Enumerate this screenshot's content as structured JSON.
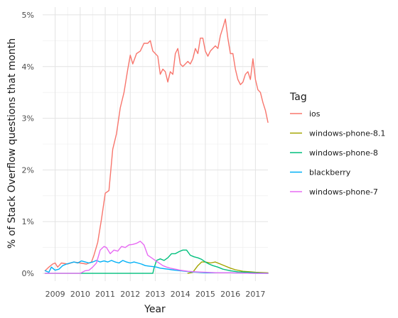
{
  "chart_data": {
    "type": "line",
    "xlabel": "Year",
    "ylabel": "% of Stack Overflow questions that month",
    "xlim": [
      2008.5,
      2017.5
    ],
    "ylim": [
      -0.15,
      5.15
    ],
    "x_ticks": [
      2009,
      2010,
      2011,
      2012,
      2013,
      2014,
      2015,
      2016,
      2017
    ],
    "x_tick_labels": [
      "2009",
      "2010",
      "2011",
      "2012",
      "2013",
      "2014",
      "2015",
      "2016",
      "2017"
    ],
    "y_ticks": [
      0,
      1,
      2,
      3,
      4,
      5
    ],
    "y_tick_labels": [
      "0%",
      "1%",
      "2%",
      "3%",
      "4%",
      "5%"
    ],
    "grid": true,
    "legend": {
      "title": "Tag",
      "position": "right",
      "entries": [
        {
          "label": "ios",
          "color": "#F8766D"
        },
        {
          "label": "windows-phone-8.1",
          "color": "#A3A500"
        },
        {
          "label": "windows-phone-8",
          "color": "#00BF7D"
        },
        {
          "label": "blackberry",
          "color": "#00B0F6"
        },
        {
          "label": "windows-phone-7",
          "color": "#E76BF3"
        }
      ]
    },
    "series": [
      {
        "name": "ios",
        "color": "#F8766D",
        "points": [
          [
            2008.6,
            0.05
          ],
          [
            2008.75,
            0.12
          ],
          [
            2008.9,
            0.18
          ],
          [
            2009.0,
            0.2
          ],
          [
            2009.1,
            0.12
          ],
          [
            2009.25,
            0.2
          ],
          [
            2009.5,
            0.18
          ],
          [
            2009.75,
            0.22
          ],
          [
            2010.0,
            0.2
          ],
          [
            2010.25,
            0.18
          ],
          [
            2010.45,
            0.22
          ],
          [
            2010.55,
            0.35
          ],
          [
            2010.7,
            0.6
          ],
          [
            2010.85,
            1.05
          ],
          [
            2011.0,
            1.55
          ],
          [
            2011.15,
            1.6
          ],
          [
            2011.3,
            2.4
          ],
          [
            2011.45,
            2.7
          ],
          [
            2011.6,
            3.2
          ],
          [
            2011.75,
            3.5
          ],
          [
            2011.9,
            3.95
          ],
          [
            2012.0,
            4.22
          ],
          [
            2012.1,
            4.05
          ],
          [
            2012.25,
            4.25
          ],
          [
            2012.4,
            4.3
          ],
          [
            2012.55,
            4.45
          ],
          [
            2012.7,
            4.45
          ],
          [
            2012.8,
            4.5
          ],
          [
            2012.9,
            4.3
          ],
          [
            2013.0,
            4.25
          ],
          [
            2013.1,
            4.2
          ],
          [
            2013.2,
            3.85
          ],
          [
            2013.3,
            3.95
          ],
          [
            2013.4,
            3.9
          ],
          [
            2013.5,
            3.7
          ],
          [
            2013.6,
            3.9
          ],
          [
            2013.7,
            3.85
          ],
          [
            2013.8,
            4.25
          ],
          [
            2013.9,
            4.35
          ],
          [
            2014.0,
            4.05
          ],
          [
            2014.1,
            4.0
          ],
          [
            2014.2,
            4.05
          ],
          [
            2014.3,
            4.1
          ],
          [
            2014.4,
            4.05
          ],
          [
            2014.5,
            4.15
          ],
          [
            2014.6,
            4.35
          ],
          [
            2014.7,
            4.25
          ],
          [
            2014.8,
            4.55
          ],
          [
            2014.9,
            4.55
          ],
          [
            2015.0,
            4.3
          ],
          [
            2015.1,
            4.2
          ],
          [
            2015.2,
            4.3
          ],
          [
            2015.3,
            4.35
          ],
          [
            2015.4,
            4.4
          ],
          [
            2015.5,
            4.35
          ],
          [
            2015.6,
            4.6
          ],
          [
            2015.7,
            4.75
          ],
          [
            2015.8,
            4.92
          ],
          [
            2015.9,
            4.55
          ],
          [
            2016.0,
            4.25
          ],
          [
            2016.1,
            4.25
          ],
          [
            2016.2,
            3.95
          ],
          [
            2016.3,
            3.75
          ],
          [
            2016.4,
            3.65
          ],
          [
            2016.5,
            3.7
          ],
          [
            2016.6,
            3.85
          ],
          [
            2016.7,
            3.9
          ],
          [
            2016.8,
            3.75
          ],
          [
            2016.9,
            4.15
          ],
          [
            2017.0,
            3.75
          ],
          [
            2017.1,
            3.55
          ],
          [
            2017.2,
            3.5
          ],
          [
            2017.3,
            3.3
          ],
          [
            2017.4,
            3.15
          ],
          [
            2017.5,
            2.92
          ]
        ]
      },
      {
        "name": "windows-phone-8.1",
        "color": "#A3A500",
        "points": [
          [
            2014.3,
            0.0
          ],
          [
            2014.5,
            0.02
          ],
          [
            2014.7,
            0.15
          ],
          [
            2014.85,
            0.22
          ],
          [
            2015.0,
            0.22
          ],
          [
            2015.2,
            0.2
          ],
          [
            2015.4,
            0.22
          ],
          [
            2015.6,
            0.18
          ],
          [
            2015.8,
            0.14
          ],
          [
            2016.0,
            0.1
          ],
          [
            2016.2,
            0.07
          ],
          [
            2016.5,
            0.04
          ],
          [
            2016.8,
            0.03
          ],
          [
            2017.0,
            0.02
          ],
          [
            2017.5,
            0.01
          ]
        ]
      },
      {
        "name": "windows-phone-8",
        "color": "#00BF7D",
        "points": [
          [
            2008.6,
            0.0
          ],
          [
            2010.0,
            0.0
          ],
          [
            2011.0,
            0.0
          ],
          [
            2012.0,
            0.0
          ],
          [
            2012.9,
            0.0
          ],
          [
            2012.95,
            0.1
          ],
          [
            2013.05,
            0.25
          ],
          [
            2013.2,
            0.28
          ],
          [
            2013.35,
            0.25
          ],
          [
            2013.5,
            0.3
          ],
          [
            2013.65,
            0.38
          ],
          [
            2013.8,
            0.38
          ],
          [
            2013.95,
            0.42
          ],
          [
            2014.1,
            0.45
          ],
          [
            2014.25,
            0.45
          ],
          [
            2014.4,
            0.35
          ],
          [
            2014.55,
            0.32
          ],
          [
            2014.7,
            0.3
          ],
          [
            2014.85,
            0.27
          ],
          [
            2015.0,
            0.22
          ],
          [
            2015.15,
            0.18
          ],
          [
            2015.3,
            0.15
          ],
          [
            2015.5,
            0.12
          ],
          [
            2015.7,
            0.08
          ],
          [
            2016.0,
            0.05
          ],
          [
            2016.3,
            0.03
          ],
          [
            2016.7,
            0.02
          ],
          [
            2017.0,
            0.01
          ],
          [
            2017.5,
            0.0
          ]
        ]
      },
      {
        "name": "blackberry",
        "color": "#00B0F6",
        "points": [
          [
            2008.6,
            0.05
          ],
          [
            2008.75,
            0.02
          ],
          [
            2008.85,
            0.12
          ],
          [
            2009.0,
            0.06
          ],
          [
            2009.15,
            0.08
          ],
          [
            2009.3,
            0.15
          ],
          [
            2009.45,
            0.18
          ],
          [
            2009.6,
            0.2
          ],
          [
            2009.75,
            0.22
          ],
          [
            2009.9,
            0.2
          ],
          [
            2010.05,
            0.24
          ],
          [
            2010.2,
            0.22
          ],
          [
            2010.35,
            0.2
          ],
          [
            2010.5,
            0.22
          ],
          [
            2010.65,
            0.25
          ],
          [
            2010.8,
            0.22
          ],
          [
            2010.95,
            0.24
          ],
          [
            2011.1,
            0.22
          ],
          [
            2011.25,
            0.25
          ],
          [
            2011.4,
            0.22
          ],
          [
            2011.55,
            0.2
          ],
          [
            2011.7,
            0.25
          ],
          [
            2011.85,
            0.22
          ],
          [
            2012.0,
            0.2
          ],
          [
            2012.15,
            0.22
          ],
          [
            2012.3,
            0.2
          ],
          [
            2012.45,
            0.18
          ],
          [
            2012.6,
            0.15
          ],
          [
            2012.75,
            0.14
          ],
          [
            2012.9,
            0.13
          ],
          [
            2013.05,
            0.12
          ],
          [
            2013.2,
            0.1
          ],
          [
            2013.35,
            0.09
          ],
          [
            2013.5,
            0.08
          ],
          [
            2013.65,
            0.07
          ],
          [
            2013.8,
            0.06
          ],
          [
            2014.0,
            0.05
          ],
          [
            2014.2,
            0.04
          ],
          [
            2014.4,
            0.03
          ],
          [
            2014.7,
            0.02
          ],
          [
            2015.0,
            0.01
          ],
          [
            2015.5,
            0.01
          ],
          [
            2016.0,
            0.01
          ],
          [
            2017.0,
            0.0
          ],
          [
            2017.5,
            0.0
          ]
        ]
      },
      {
        "name": "windows-phone-7",
        "color": "#E76BF3",
        "points": [
          [
            2008.6,
            0.0
          ],
          [
            2009.0,
            0.0
          ],
          [
            2010.0,
            0.0
          ],
          [
            2010.2,
            0.05
          ],
          [
            2010.35,
            0.06
          ],
          [
            2010.5,
            0.12
          ],
          [
            2010.65,
            0.2
          ],
          [
            2010.8,
            0.45
          ],
          [
            2010.95,
            0.52
          ],
          [
            2011.05,
            0.5
          ],
          [
            2011.2,
            0.38
          ],
          [
            2011.35,
            0.45
          ],
          [
            2011.5,
            0.43
          ],
          [
            2011.65,
            0.52
          ],
          [
            2011.8,
            0.5
          ],
          [
            2011.95,
            0.55
          ],
          [
            2012.1,
            0.56
          ],
          [
            2012.25,
            0.58
          ],
          [
            2012.4,
            0.62
          ],
          [
            2012.55,
            0.55
          ],
          [
            2012.7,
            0.35
          ],
          [
            2012.85,
            0.3
          ],
          [
            2013.0,
            0.25
          ],
          [
            2013.15,
            0.2
          ],
          [
            2013.3,
            0.15
          ],
          [
            2013.45,
            0.12
          ],
          [
            2013.6,
            0.1
          ],
          [
            2013.8,
            0.08
          ],
          [
            2014.0,
            0.06
          ],
          [
            2014.3,
            0.04
          ],
          [
            2014.6,
            0.03
          ],
          [
            2015.0,
            0.02
          ],
          [
            2015.5,
            0.01
          ],
          [
            2016.0,
            0.01
          ],
          [
            2017.0,
            0.0
          ],
          [
            2017.5,
            0.0
          ]
        ]
      }
    ]
  }
}
